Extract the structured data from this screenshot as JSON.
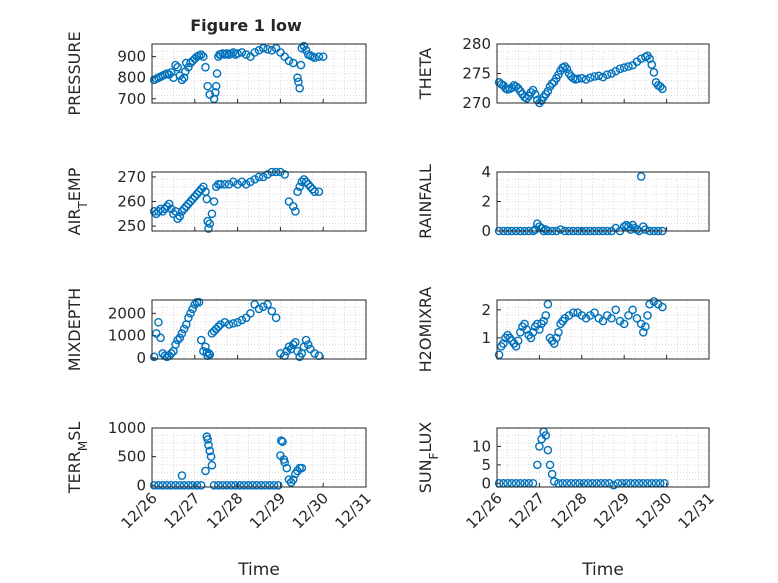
{
  "figure": {
    "title": "Figure 1 low"
  },
  "colors": {
    "marker": "#0072BD",
    "axis": "#262626",
    "grid": "#cfcfcf",
    "background": "#ffffff"
  },
  "chart_data": [
    {
      "type": "scatter",
      "title": "Figure 1 low",
      "xlabel": "",
      "ylabel": "PRESSURE",
      "xlim": [
        0,
        5
      ],
      "ylim": [
        680,
        960
      ],
      "yticks": [
        700,
        800,
        900
      ],
      "ytick_labels": [
        "700",
        "800",
        "900"
      ],
      "grid": true,
      "marker": "open-circle",
      "x": [
        0.05,
        0.1,
        0.15,
        0.2,
        0.25,
        0.3,
        0.35,
        0.4,
        0.45,
        0.5,
        0.55,
        0.6,
        0.65,
        0.7,
        0.75,
        0.78,
        0.8,
        0.85,
        0.9,
        0.95,
        1.0,
        1.05,
        1.1,
        1.15,
        1.2,
        1.25,
        1.3,
        1.35,
        1.45,
        1.48,
        1.5,
        1.52,
        1.55,
        1.58,
        1.6,
        1.65,
        1.7,
        1.75,
        1.8,
        1.85,
        1.9,
        1.95,
        2.0,
        2.1,
        2.2,
        2.3,
        2.4,
        2.5,
        2.6,
        2.7,
        2.8,
        2.9,
        3.0,
        3.1,
        3.2,
        3.3,
        3.4,
        3.42,
        3.45,
        3.48,
        3.5,
        3.55,
        3.6,
        3.65,
        3.7,
        3.75,
        3.8,
        3.9,
        4.0
      ],
      "y": [
        790,
        795,
        800,
        805,
        810,
        815,
        820,
        815,
        825,
        800,
        860,
        850,
        810,
        790,
        800,
        830,
        870,
        850,
        870,
        880,
        890,
        900,
        905,
        910,
        900,
        850,
        760,
        720,
        700,
        730,
        760,
        820,
        900,
        910,
        910,
        915,
        910,
        915,
        910,
        915,
        920,
        910,
        915,
        920,
        910,
        900,
        920,
        930,
        940,
        935,
        930,
        940,
        920,
        900,
        880,
        870,
        800,
        780,
        750,
        860,
        940,
        950,
        930,
        910,
        905,
        900,
        895,
        900,
        900
      ]
    },
    {
      "type": "scatter",
      "title": "",
      "xlabel": "",
      "ylabel": "THETA",
      "xlim": [
        0,
        5
      ],
      "ylim": [
        270,
        280
      ],
      "yticks": [
        270,
        275,
        280
      ],
      "ytick_labels": [
        "270",
        "275",
        "280"
      ],
      "grid": true,
      "marker": "open-circle",
      "x": [
        0.05,
        0.1,
        0.15,
        0.2,
        0.25,
        0.3,
        0.35,
        0.4,
        0.45,
        0.5,
        0.55,
        0.6,
        0.65,
        0.7,
        0.75,
        0.8,
        0.85,
        0.9,
        0.95,
        1.0,
        1.05,
        1.1,
        1.15,
        1.2,
        1.25,
        1.3,
        1.35,
        1.4,
        1.45,
        1.5,
        1.55,
        1.6,
        1.65,
        1.7,
        1.75,
        1.8,
        1.85,
        1.9,
        2.0,
        2.1,
        2.2,
        2.3,
        2.4,
        2.5,
        2.6,
        2.7,
        2.8,
        2.9,
        3.0,
        3.1,
        3.2,
        3.3,
        3.4,
        3.5,
        3.55,
        3.6,
        3.65,
        3.7,
        3.75,
        3.8,
        3.85,
        3.9
      ],
      "y": [
        273.5,
        273.2,
        273.0,
        272.5,
        272.3,
        272.4,
        272.6,
        273.0,
        272.8,
        272.5,
        272.0,
        271.5,
        271.0,
        270.8,
        271.2,
        271.8,
        272.2,
        271.5,
        270.5,
        270.0,
        270.4,
        271.0,
        271.5,
        272.0,
        272.8,
        273.3,
        273.6,
        274.2,
        274.8,
        275.5,
        276.0,
        276.2,
        275.8,
        275.0,
        274.5,
        274.2,
        274.0,
        274.1,
        274.2,
        274.0,
        274.3,
        274.5,
        274.6,
        274.4,
        274.8,
        275.0,
        275.4,
        275.8,
        276.0,
        276.2,
        276.4,
        277.0,
        277.5,
        277.8,
        278.0,
        277.5,
        276.5,
        275.2,
        273.5,
        273.0,
        272.8,
        272.4
      ]
    },
    {
      "type": "scatter",
      "title": "",
      "xlabel": "",
      "ylabel": "AIR_TEMP",
      "xlim": [
        0,
        5
      ],
      "ylim": [
        248,
        272
      ],
      "yticks": [
        250,
        260,
        270
      ],
      "ytick_labels": [
        "250",
        "260",
        "270"
      ],
      "grid": true,
      "marker": "open-circle",
      "x": [
        0.05,
        0.1,
        0.15,
        0.2,
        0.25,
        0.3,
        0.35,
        0.4,
        0.45,
        0.5,
        0.55,
        0.6,
        0.65,
        0.7,
        0.75,
        0.8,
        0.85,
        0.9,
        0.95,
        1.0,
        1.05,
        1.1,
        1.15,
        1.2,
        1.25,
        1.28,
        1.3,
        1.32,
        1.35,
        1.4,
        1.45,
        1.5,
        1.55,
        1.6,
        1.7,
        1.8,
        1.9,
        2.0,
        2.1,
        2.2,
        2.3,
        2.4,
        2.5,
        2.6,
        2.7,
        2.8,
        2.9,
        3.0,
        3.1,
        3.2,
        3.3,
        3.35,
        3.4,
        3.45,
        3.5,
        3.55,
        3.6,
        3.65,
        3.7,
        3.75,
        3.8,
        3.9
      ],
      "y": [
        256,
        255,
        256,
        257,
        256,
        257,
        258,
        259,
        257,
        255,
        256,
        253,
        254,
        256,
        257,
        258,
        259,
        260,
        261,
        262,
        263,
        264,
        265,
        266,
        264,
        261,
        252,
        249,
        251,
        255,
        260,
        266,
        267,
        267,
        267,
        267,
        268,
        267,
        268,
        267,
        268,
        269,
        270,
        270,
        271,
        272,
        272,
        272,
        271,
        260,
        258,
        256,
        264,
        266,
        268,
        269,
        268,
        267,
        266,
        265,
        264,
        264
      ]
    },
    {
      "type": "scatter",
      "title": "",
      "xlabel": "",
      "ylabel": "RAINFALL",
      "xlim": [
        0,
        5
      ],
      "ylim": [
        0,
        4
      ],
      "yticks": [
        0,
        2,
        4
      ],
      "ytick_labels": [
        "0",
        "2",
        "4"
      ],
      "grid": true,
      "marker": "open-circle",
      "x": [
        0.05,
        0.15,
        0.25,
        0.35,
        0.45,
        0.55,
        0.65,
        0.75,
        0.85,
        0.9,
        0.95,
        1.0,
        1.05,
        1.1,
        1.15,
        1.2,
        1.3,
        1.4,
        1.5,
        1.6,
        1.7,
        1.8,
        1.9,
        2.0,
        2.1,
        2.2,
        2.3,
        2.4,
        2.5,
        2.6,
        2.7,
        2.8,
        2.9,
        3.0,
        3.05,
        3.1,
        3.15,
        3.2,
        3.25,
        3.3,
        3.35,
        3.4,
        3.45,
        3.5,
        3.6,
        3.7,
        3.8,
        3.9
      ],
      "y": [
        0,
        0,
        0,
        0,
        0,
        0,
        0,
        0,
        0,
        0.1,
        0.5,
        0.3,
        0.2,
        0,
        0.1,
        0,
        0,
        0,
        0.1,
        0,
        0,
        0,
        0,
        0,
        0,
        0,
        0,
        0,
        0,
        0,
        0,
        0.2,
        0,
        0.3,
        0.4,
        0.3,
        0.1,
        0.4,
        0.2,
        0.1,
        0,
        3.7,
        0.3,
        0.1,
        0,
        0,
        0,
        0
      ]
    },
    {
      "type": "scatter",
      "title": "",
      "xlabel": "",
      "ylabel": "MIXDEPTH",
      "xlim": [
        0,
        5
      ],
      "ylim": [
        -50,
        2600
      ],
      "yticks": [
        0,
        1000,
        2000
      ],
      "ytick_labels": [
        "0",
        "1000",
        "2000"
      ],
      "grid": true,
      "marker": "open-circle",
      "x": [
        0.05,
        0.1,
        0.15,
        0.2,
        0.25,
        0.3,
        0.35,
        0.4,
        0.45,
        0.5,
        0.55,
        0.6,
        0.65,
        0.7,
        0.75,
        0.8,
        0.85,
        0.9,
        0.95,
        1.0,
        1.05,
        1.1,
        1.15,
        1.2,
        1.25,
        1.28,
        1.3,
        1.33,
        1.35,
        1.4,
        1.45,
        1.5,
        1.55,
        1.6,
        1.7,
        1.8,
        1.9,
        2.0,
        2.1,
        2.2,
        2.3,
        2.4,
        2.5,
        2.6,
        2.7,
        2.8,
        2.9,
        3.0,
        3.1,
        3.15,
        3.2,
        3.25,
        3.3,
        3.35,
        3.4,
        3.45,
        3.5,
        3.55,
        3.6,
        3.65,
        3.7,
        3.8,
        3.9
      ],
      "y": [
        50,
        1100,
        1600,
        900,
        200,
        100,
        50,
        100,
        200,
        300,
        600,
        800,
        900,
        1100,
        1300,
        1500,
        1800,
        2000,
        2200,
        2400,
        2500,
        2500,
        800,
        300,
        500,
        250,
        100,
        200,
        150,
        1100,
        1200,
        1300,
        1400,
        1500,
        1600,
        1500,
        1550,
        1600,
        1700,
        1800,
        2000,
        2400,
        2200,
        2300,
        2400,
        2100,
        1800,
        200,
        100,
        300,
        500,
        400,
        600,
        700,
        300,
        50,
        200,
        500,
        800,
        600,
        400,
        200,
        100
      ]
    },
    {
      "type": "scatter",
      "title": "",
      "xlabel": "",
      "ylabel": "H2OMIXRA",
      "xlim": [
        0,
        5
      ],
      "ylim": [
        0.25,
        2.35
      ],
      "yticks": [
        1,
        2
      ],
      "ytick_labels": [
        "1",
        "2"
      ],
      "grid": true,
      "marker": "open-circle",
      "x": [
        0.05,
        0.1,
        0.15,
        0.2,
        0.25,
        0.3,
        0.35,
        0.4,
        0.45,
        0.5,
        0.55,
        0.6,
        0.65,
        0.7,
        0.75,
        0.8,
        0.85,
        0.9,
        0.95,
        1.0,
        1.05,
        1.1,
        1.15,
        1.2,
        1.25,
        1.3,
        1.35,
        1.4,
        1.45,
        1.5,
        1.55,
        1.6,
        1.7,
        1.8,
        1.9,
        2.0,
        2.1,
        2.2,
        2.3,
        2.4,
        2.5,
        2.6,
        2.7,
        2.8,
        2.9,
        3.0,
        3.1,
        3.2,
        3.3,
        3.4,
        3.45,
        3.5,
        3.55,
        3.6,
        3.7,
        3.8,
        3.9
      ],
      "y": [
        0.4,
        0.7,
        0.8,
        1.0,
        1.1,
        1.0,
        0.9,
        0.8,
        0.7,
        0.9,
        1.2,
        1.4,
        1.5,
        1.3,
        1.1,
        1.0,
        1.2,
        1.4,
        1.5,
        1.3,
        1.5,
        1.6,
        1.8,
        2.2,
        1.0,
        0.9,
        0.8,
        1.0,
        1.2,
        1.5,
        1.6,
        1.7,
        1.8,
        1.9,
        1.9,
        1.8,
        1.7,
        1.8,
        1.9,
        1.7,
        1.6,
        1.8,
        1.7,
        2.0,
        1.6,
        1.5,
        1.8,
        2.0,
        1.7,
        1.5,
        1.2,
        1.4,
        1.8,
        2.2,
        2.3,
        2.2,
        2.1
      ]
    },
    {
      "type": "scatter",
      "title": "",
      "xlabel": "Time",
      "ylabel": "TERR_MSL",
      "xlim": [
        0,
        5
      ],
      "ylim": [
        -30,
        1000
      ],
      "yticks": [
        0,
        500,
        1000
      ],
      "ytick_labels": [
        "0",
        "500",
        "1000"
      ],
      "xticks": [
        0,
        1,
        2,
        3,
        4,
        5
      ],
      "xtick_labels": [
        "12/26",
        "12/27",
        "12/28",
        "12/29",
        "12/30",
        "12/31"
      ],
      "grid": true,
      "marker": "open-circle",
      "x": [
        0.05,
        0.15,
        0.25,
        0.35,
        0.45,
        0.55,
        0.65,
        0.7,
        0.75,
        0.85,
        0.95,
        1.05,
        1.15,
        1.25,
        1.28,
        1.3,
        1.32,
        1.35,
        1.38,
        1.4,
        1.45,
        1.55,
        1.65,
        1.75,
        1.85,
        1.95,
        2.05,
        2.15,
        2.25,
        2.35,
        2.45,
        2.55,
        2.65,
        2.75,
        2.85,
        2.95,
        3.0,
        3.02,
        3.05,
        3.08,
        3.1,
        3.15,
        3.2,
        3.25,
        3.3,
        3.35,
        3.4,
        3.45,
        3.5
      ],
      "y": [
        0,
        0,
        0,
        0,
        0,
        0,
        0,
        170,
        0,
        0,
        0,
        0,
        0,
        250,
        850,
        800,
        700,
        600,
        500,
        350,
        0,
        0,
        0,
        0,
        0,
        0,
        0,
        0,
        0,
        0,
        0,
        0,
        0,
        0,
        0,
        0,
        520,
        780,
        760,
        450,
        400,
        300,
        100,
        50,
        100,
        200,
        250,
        300,
        300
      ]
    },
    {
      "type": "scatter",
      "title": "",
      "xlabel": "Time",
      "ylabel": "SUN_FLUX",
      "xlim": [
        0,
        5
      ],
      "ylim": [
        -1,
        15
      ],
      "yticks": [
        0,
        5,
        10
      ],
      "ytick_labels": [
        "0",
        "5",
        "10"
      ],
      "xticks": [
        0,
        1,
        2,
        3,
        4,
        5
      ],
      "xtick_labels": [
        "12/26",
        "12/27",
        "12/28",
        "12/29",
        "12/30",
        "12/31"
      ],
      "grid": true,
      "marker": "open-circle",
      "x": [
        0.05,
        0.15,
        0.25,
        0.35,
        0.45,
        0.55,
        0.65,
        0.75,
        0.85,
        0.95,
        1.0,
        1.05,
        1.1,
        1.15,
        1.2,
        1.25,
        1.3,
        1.35,
        1.45,
        1.55,
        1.65,
        1.75,
        1.85,
        1.95,
        2.05,
        2.15,
        2.25,
        2.35,
        2.45,
        2.55,
        2.65,
        2.75,
        2.85,
        2.95,
        3.05,
        3.15,
        3.25,
        3.35,
        3.45,
        3.55,
        3.65,
        3.75,
        3.85,
        3.95
      ],
      "y": [
        0,
        0,
        0,
        0,
        0,
        0,
        0,
        0,
        0,
        5,
        10,
        12,
        14,
        13,
        9,
        5,
        2.5,
        0.5,
        0,
        0,
        0,
        0,
        0,
        0,
        0,
        0,
        0,
        0,
        0,
        0,
        0,
        -0.5,
        0,
        0,
        0,
        0,
        0,
        0,
        0,
        0,
        0,
        0,
        0,
        0
      ]
    }
  ]
}
